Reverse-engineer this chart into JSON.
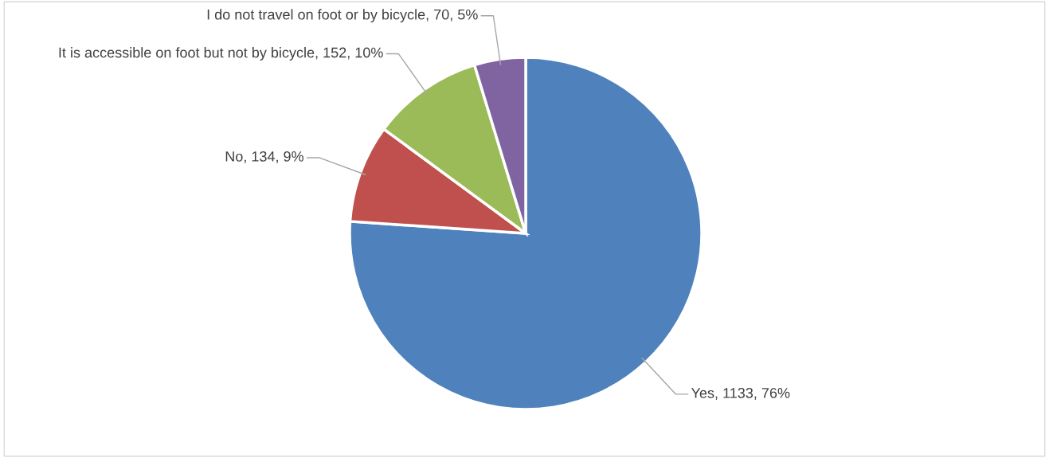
{
  "chart_data": {
    "type": "pie",
    "categories": [
      "Yes",
      "No",
      "It is accessible on foot but not by bicycle",
      "I do not travel on foot or by bicycle"
    ],
    "values": [
      1133,
      134,
      152,
      70
    ],
    "colors": [
      "#4f81bd",
      "#c0504d",
      "#9bbb59",
      "#8064a2"
    ],
    "value_labels": [
      "1133, 76%",
      "134, 9%",
      "152, 10%",
      "70, 5%"
    ],
    "legend": false
  }
}
